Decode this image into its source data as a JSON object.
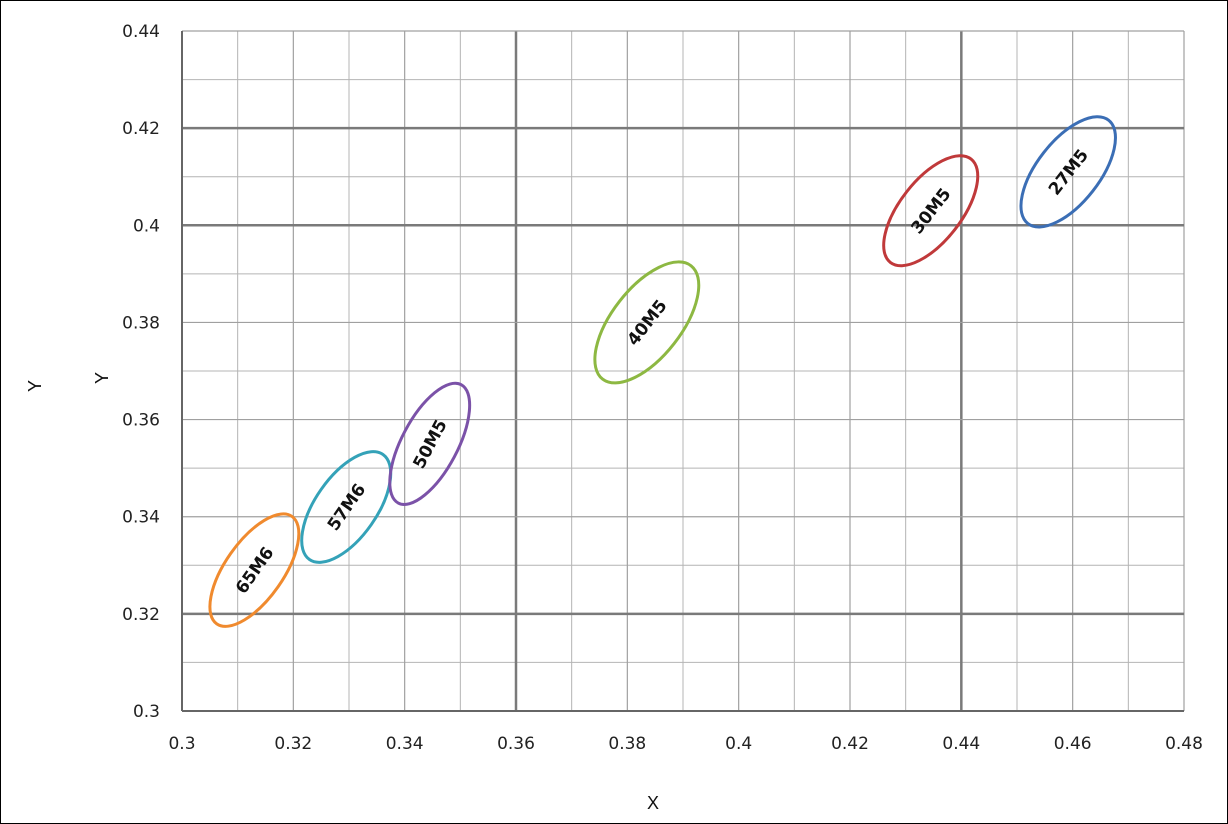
{
  "chart_data": {
    "type": "scatter",
    "xlabel": "X",
    "ylabel": "Y",
    "ylabel_inner": "Y",
    "xlim": [
      0.3,
      0.48
    ],
    "ylim": [
      0.3,
      0.44
    ],
    "x_ticks": [
      "0.3",
      "0.32",
      "0.34",
      "0.36",
      "0.38",
      "0.4",
      "0.42",
      "0.44",
      "0.46",
      "0.48"
    ],
    "y_ticks": [
      "0.3",
      "0.32",
      "0.34",
      "0.36",
      "0.38",
      "0.4",
      "0.42",
      "0.44"
    ],
    "x_tick_values": [
      0.3,
      0.32,
      0.34,
      0.36,
      0.38,
      0.4,
      0.42,
      0.44,
      0.46,
      0.48
    ],
    "y_tick_values": [
      0.3,
      0.32,
      0.34,
      0.36,
      0.38,
      0.4,
      0.42,
      0.44
    ],
    "minor_x": [
      0.31,
      0.33,
      0.35,
      0.37,
      0.39,
      0.41,
      0.43,
      0.45,
      0.47
    ],
    "minor_y": [
      0.31,
      0.33,
      0.35,
      0.37,
      0.39,
      0.41,
      0.43
    ],
    "major_grid_x": [
      0.36,
      0.44
    ],
    "major_grid_y": [
      0.32,
      0.4,
      0.42
    ],
    "grid": true,
    "ellipses": [
      {
        "label": "65M6",
        "cx": 0.313,
        "cy": 0.329,
        "rx": 0.0052,
        "ry": 0.0135,
        "angle": 35,
        "color": "#F08A2E"
      },
      {
        "label": "57M6",
        "cx": 0.3295,
        "cy": 0.342,
        "rx": 0.0055,
        "ry": 0.0132,
        "angle": 35,
        "color": "#34A2B8"
      },
      {
        "label": "50M5",
        "cx": 0.3445,
        "cy": 0.355,
        "rx": 0.005,
        "ry": 0.0138,
        "angle": 28,
        "color": "#7B52A8"
      },
      {
        "label": "40M5",
        "cx": 0.3835,
        "cy": 0.38,
        "rx": 0.0062,
        "ry": 0.0148,
        "angle": 38,
        "color": "#8DB842"
      },
      {
        "label": "30M5",
        "cx": 0.4345,
        "cy": 0.403,
        "rx": 0.0055,
        "ry": 0.0135,
        "angle": 38,
        "color": "#C0393A"
      },
      {
        "label": "27M5",
        "cx": 0.4592,
        "cy": 0.411,
        "rx": 0.0056,
        "ry": 0.0135,
        "angle": 38,
        "color": "#3B6EB5"
      }
    ]
  }
}
